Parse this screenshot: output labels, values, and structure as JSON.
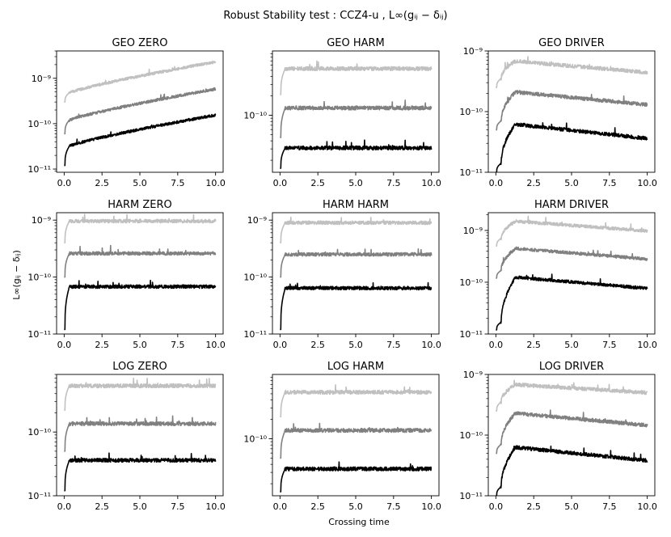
{
  "figure": {
    "suptitle": "Robust Stability test : CCZ4-u , L∞(gᵢⱼ − δᵢⱼ)",
    "ylabel": "L∞(gᵢⱼ − δᵢⱼ)",
    "xlabel": "Crossing time"
  },
  "colors": {
    "light": "#c0c0c0",
    "medium": "#808080",
    "dark": "#000000",
    "axes": "#000000"
  },
  "chart_data": [
    {
      "type": "line",
      "title": "GEO ZERO",
      "ylog": true,
      "xlim": [
        -0.5,
        10.5
      ],
      "ylim": [
        8.5e-12,
        4e-09
      ],
      "xticks": [
        "0.0",
        "2.5",
        "5.0",
        "7.5",
        "10.0"
      ],
      "yticks": [
        {
          "v": 1e-11,
          "label": "10⁻¹¹"
        },
        {
          "v": 1e-10,
          "label": "10⁻¹⁰"
        },
        {
          "v": 1e-09,
          "label": "10⁻⁹"
        }
      ],
      "series": [
        {
          "name": "light",
          "kind": "growth",
          "start": 3e-10,
          "plateau": 4.8e-10,
          "end": 2.3e-09
        },
        {
          "name": "medium",
          "kind": "growth",
          "start": 6e-11,
          "plateau": 1.2e-10,
          "end": 5.8e-10
        },
        {
          "name": "dark",
          "kind": "growth",
          "start": 1.2e-11,
          "plateau": 3.2e-11,
          "end": 1.55e-10
        }
      ]
    },
    {
      "type": "line",
      "title": "GEO HARM",
      "ylog": true,
      "xlim": [
        -0.5,
        10.5
      ],
      "ylim": [
        1.3e-11,
        1e-09
      ],
      "xticks": [
        "0.0",
        "2.5",
        "5.0",
        "7.5",
        "10.0"
      ],
      "yticks": [
        {
          "v": 1e-10,
          "label": "10⁻¹⁰"
        }
      ],
      "series": [
        {
          "name": "light",
          "kind": "flat",
          "start": 2.1e-10,
          "level": 5.3e-10
        },
        {
          "name": "medium",
          "kind": "flat",
          "start": 4.5e-11,
          "level": 1.3e-10
        },
        {
          "name": "dark",
          "kind": "flat",
          "start": 1.5e-11,
          "level": 3.1e-11
        }
      ]
    },
    {
      "type": "line",
      "title": "GEO DRIVER",
      "ylog": true,
      "xlim": [
        -0.5,
        10.5
      ],
      "ylim": [
        1e-11,
        1e-09
      ],
      "xticks": [
        "0.0",
        "2.5",
        "5.0",
        "7.5",
        "10.0"
      ],
      "yticks": [
        {
          "v": 1e-11,
          "label": "10⁻¹¹"
        },
        {
          "v": 1e-10,
          "label": "10⁻¹⁰"
        },
        {
          "v": 1e-09,
          "label": "10⁻⁹"
        }
      ],
      "series": [
        {
          "name": "light",
          "kind": "peak",
          "start": 2.5e-10,
          "peak": 6.8e-10,
          "end": 4.4e-10
        },
        {
          "name": "medium",
          "kind": "peak",
          "start": 5e-11,
          "peak": 2.1e-10,
          "end": 1.3e-10
        },
        {
          "name": "dark",
          "kind": "peak",
          "start": 1e-11,
          "peak": 6.2e-11,
          "end": 3.6e-11
        }
      ]
    },
    {
      "type": "line",
      "title": "HARM ZERO",
      "ylog": true,
      "xlim": [
        -0.5,
        10.5
      ],
      "ylim": [
        1e-11,
        1.35e-09
      ],
      "xticks": [
        "0.0",
        "2.5",
        "5.0",
        "7.5",
        "10.0"
      ],
      "yticks": [
        {
          "v": 1e-11,
          "label": "10⁻¹¹"
        },
        {
          "v": 1e-10,
          "label": "10⁻¹⁰"
        },
        {
          "v": 1e-09,
          "label": "10⁻⁹"
        }
      ],
      "series": [
        {
          "name": "light",
          "kind": "flat",
          "start": 4e-10,
          "level": 9.6e-10
        },
        {
          "name": "medium",
          "kind": "flat",
          "start": 1e-10,
          "level": 2.6e-10
        },
        {
          "name": "dark",
          "kind": "flat",
          "start": 1.2e-11,
          "level": 6.8e-11
        }
      ]
    },
    {
      "type": "line",
      "title": "HARM HARM",
      "ylog": true,
      "xlim": [
        -0.5,
        10.5
      ],
      "ylim": [
        1e-11,
        1.35e-09
      ],
      "xticks": [
        "0.0",
        "2.5",
        "5.0",
        "7.5",
        "10.0"
      ],
      "yticks": [
        {
          "v": 1e-11,
          "label": "10⁻¹¹"
        },
        {
          "v": 1e-10,
          "label": "10⁻¹⁰"
        },
        {
          "v": 1e-09,
          "label": "10⁻⁹"
        }
      ],
      "series": [
        {
          "name": "light",
          "kind": "flat",
          "start": 4e-10,
          "level": 9e-10
        },
        {
          "name": "medium",
          "kind": "flat",
          "start": 1e-10,
          "level": 2.5e-10
        },
        {
          "name": "dark",
          "kind": "flat",
          "start": 1.2e-11,
          "level": 6.4e-11
        }
      ]
    },
    {
      "type": "line",
      "title": "HARM DRIVER",
      "ylog": true,
      "xlim": [
        -0.5,
        10.5
      ],
      "ylim": [
        1e-11,
        2.2e-09
      ],
      "xticks": [
        "0.0",
        "2.5",
        "5.0",
        "7.5",
        "10.0"
      ],
      "yticks": [
        {
          "v": 1e-11,
          "label": "10⁻¹¹"
        },
        {
          "v": 1e-10,
          "label": "10⁻¹⁰"
        },
        {
          "v": 1e-09,
          "label": "10⁻⁹"
        }
      ],
      "series": [
        {
          "name": "light",
          "kind": "peak",
          "start": 5e-10,
          "peak": 1.5e-09,
          "end": 9.8e-10
        },
        {
          "name": "medium",
          "kind": "peak",
          "start": 1.2e-10,
          "peak": 4.5e-10,
          "end": 2.8e-10
        },
        {
          "name": "dark",
          "kind": "peak",
          "start": 1.2e-11,
          "peak": 1.25e-10,
          "end": 7.6e-11
        }
      ]
    },
    {
      "type": "line",
      "title": "LOG ZERO",
      "ylog": true,
      "xlim": [
        -0.5,
        10.5
      ],
      "ylim": [
        1e-11,
        8e-10
      ],
      "xticks": [
        "0.0",
        "2.5",
        "5.0",
        "7.5",
        "10.0"
      ],
      "yticks": [
        {
          "v": 1e-11,
          "label": "10⁻¹¹"
        },
        {
          "v": 1e-10,
          "label": "10⁻¹⁰"
        }
      ],
      "series": [
        {
          "name": "light",
          "kind": "flat",
          "start": 2.2e-10,
          "level": 5.3e-10
        },
        {
          "name": "medium",
          "kind": "flat",
          "start": 5e-11,
          "level": 1.35e-10
        },
        {
          "name": "dark",
          "kind": "flat",
          "start": 1.2e-11,
          "level": 3.6e-11
        }
      ]
    },
    {
      "type": "line",
      "title": "LOG HARM",
      "ylog": true,
      "xlim": [
        -0.5,
        10.5
      ],
      "ylim": [
        1.3e-11,
        1e-09
      ],
      "xticks": [
        "0.0",
        "2.5",
        "5.0",
        "7.5",
        "10.0"
      ],
      "yticks": [
        {
          "v": 1e-10,
          "label": "10⁻¹⁰"
        }
      ],
      "series": [
        {
          "name": "light",
          "kind": "flat",
          "start": 2.2e-10,
          "level": 5.3e-10
        },
        {
          "name": "medium",
          "kind": "flat",
          "start": 5e-11,
          "level": 1.35e-10
        },
        {
          "name": "dark",
          "kind": "flat",
          "start": 1.5e-11,
          "level": 3.4e-11
        }
      ]
    },
    {
      "type": "line",
      "title": "LOG DRIVER",
      "ylog": true,
      "xlim": [
        -0.5,
        10.5
      ],
      "ylim": [
        1e-11,
        1e-09
      ],
      "xticks": [
        "0.0",
        "2.5",
        "5.0",
        "7.5",
        "10.0"
      ],
      "yticks": [
        {
          "v": 1e-11,
          "label": "10⁻¹¹"
        },
        {
          "v": 1e-10,
          "label": "10⁻¹⁰"
        },
        {
          "v": 1e-09,
          "label": "10⁻⁹"
        }
      ],
      "series": [
        {
          "name": "light",
          "kind": "peak",
          "start": 2.5e-10,
          "peak": 6.8e-10,
          "end": 5e-10
        },
        {
          "name": "medium",
          "kind": "peak",
          "start": 5e-11,
          "peak": 2.3e-10,
          "end": 1.45e-10
        },
        {
          "name": "dark",
          "kind": "peak",
          "start": 1e-11,
          "peak": 6.3e-11,
          "end": 3.8e-11
        }
      ]
    }
  ]
}
